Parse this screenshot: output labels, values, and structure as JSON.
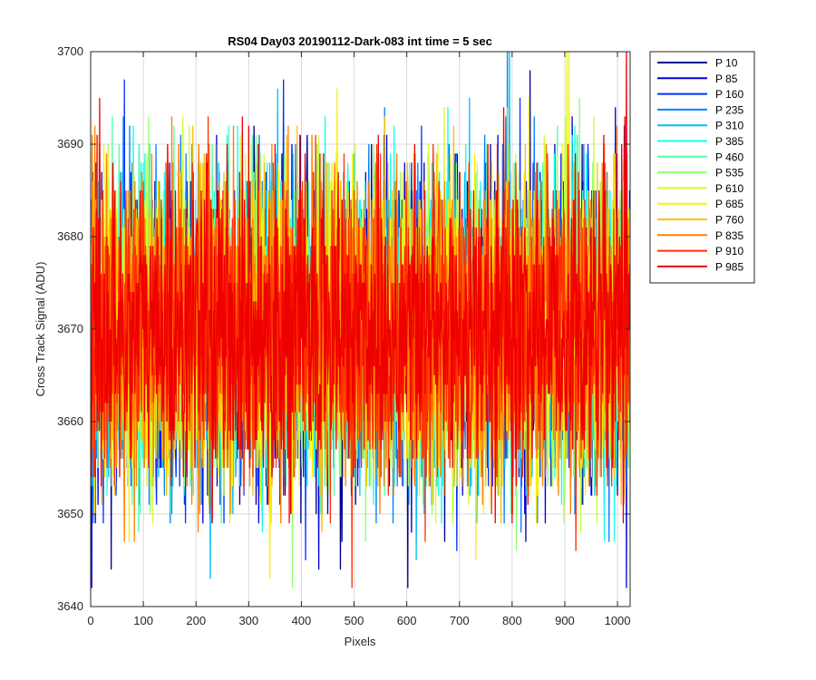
{
  "chart_data": {
    "type": "line",
    "title": "RS04 Day03 20190112-Dark-083 int time = 5 sec",
    "xlabel": "Pixels",
    "ylabel": "Cross Track Signal (ADU)",
    "xlim": [
      0,
      1024
    ],
    "ylim": [
      3640,
      3700
    ],
    "xticks": [
      0,
      100,
      200,
      300,
      400,
      500,
      600,
      700,
      800,
      900,
      1000
    ],
    "yticks": [
      3640,
      3650,
      3660,
      3670,
      3680,
      3690,
      3700
    ],
    "grid": true,
    "legend_position": "outside-top-right",
    "x": "integers 0..1023 (every pixel)",
    "noise_model": {
      "mean": 3670,
      "std": 8,
      "min": 3642,
      "max": 3700
    },
    "series": [
      {
        "name": "P 10",
        "color": "#00008F"
      },
      {
        "name": "P 85",
        "color": "#0000DF"
      },
      {
        "name": "P 160",
        "color": "#0030FF"
      },
      {
        "name": "P 235",
        "color": "#0080FF"
      },
      {
        "name": "P 310",
        "color": "#00BFFF"
      },
      {
        "name": "P 385",
        "color": "#10FFEF"
      },
      {
        "name": "P 460",
        "color": "#50FFAF"
      },
      {
        "name": "P 535",
        "color": "#8FFF70"
      },
      {
        "name": "P 610",
        "color": "#CFFF30"
      },
      {
        "name": "P 685",
        "color": "#FFEF00"
      },
      {
        "name": "P 760",
        "color": "#FFBF00"
      },
      {
        "name": "P 835",
        "color": "#FF8000"
      },
      {
        "name": "P 910",
        "color": "#FF3000"
      },
      {
        "name": "P 985",
        "color": "#EF0000"
      }
    ]
  }
}
